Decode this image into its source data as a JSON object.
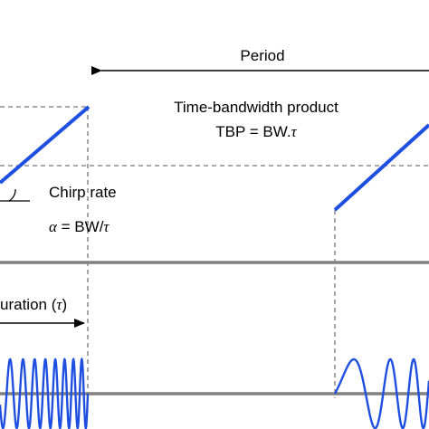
{
  "labels": {
    "period": "Period",
    "tbp_title": "Time-bandwidth product",
    "tbp_prefix": "TBP = BW.",
    "tbp_symbol": "τ",
    "chirp_rate": "Chirp rate",
    "alpha": "α",
    "alpha_eq": " = BW/",
    "tau_symbol": "τ",
    "duration_prefix": "uration (",
    "duration_symbol": "τ",
    "duration_suffix": ")"
  },
  "colors": {
    "chirp": "#1f4fe0",
    "axis": "#808080",
    "dash": "#777777",
    "text": "#000000"
  }
}
